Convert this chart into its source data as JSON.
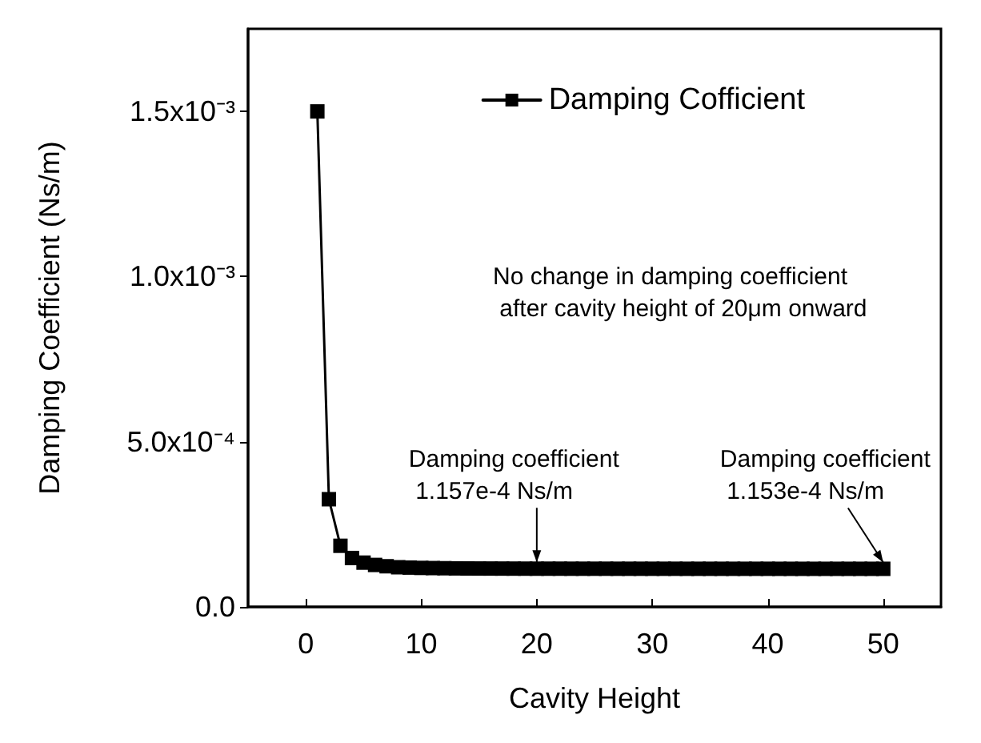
{
  "chart_data": {
    "type": "line",
    "xlabel": "Cavity Height",
    "ylabel": "Damping Coefficient (Ns/m)",
    "x": [
      1,
      2,
      3,
      4,
      5,
      6,
      7,
      8,
      9,
      10,
      11,
      12,
      13,
      14,
      15,
      16,
      17,
      18,
      19,
      20,
      21,
      22,
      23,
      24,
      25,
      26,
      27,
      28,
      29,
      30,
      31,
      32,
      33,
      34,
      35,
      36,
      37,
      38,
      39,
      40,
      41,
      42,
      43,
      44,
      45,
      46,
      47,
      48,
      49,
      50
    ],
    "series": [
      {
        "name": "Damping Cofficient",
        "color": "#000000",
        "values": [
          0.0015,
          0.000326,
          0.000185,
          0.000148,
          0.000134,
          0.000127,
          0.000123,
          0.00012,
          0.000119,
          0.000118,
          0.0001175,
          0.000117,
          0.0001166,
          0.0001164,
          0.0001162,
          0.0001161,
          0.000116,
          0.0001159,
          0.0001158,
          0.0001157,
          0.0001157,
          0.0001157,
          0.0001156,
          0.0001156,
          0.0001156,
          0.0001156,
          0.0001155,
          0.0001155,
          0.0001155,
          0.0001155,
          0.0001155,
          0.0001155,
          0.0001154,
          0.0001154,
          0.0001154,
          0.0001154,
          0.0001154,
          0.0001154,
          0.0001154,
          0.0001154,
          0.0001153,
          0.0001153,
          0.0001153,
          0.0001153,
          0.0001153,
          0.0001153,
          0.0001153,
          0.0001153,
          0.0001153,
          0.0001153
        ]
      }
    ],
    "xlim": [
      -5,
      55
    ],
    "xticks": [
      0,
      10,
      20,
      30,
      40,
      50
    ],
    "ylim": [
      0,
      0.00175
    ],
    "yticks": [
      {
        "value": 0,
        "label": "0.0"
      },
      {
        "value": 0.0005,
        "label": "5.0x10⁻⁴"
      },
      {
        "value": 0.001,
        "label": "1.0x10⁻³"
      },
      {
        "value": 0.0015,
        "label": "1.5x10⁻³"
      }
    ],
    "annotations": [
      {
        "text": "Damping coefficient\n 1.157e-4 Ns/m",
        "x": 20,
        "y": 0.0001157
      },
      {
        "text": "Damping coefficient\n 1.153e-4 Ns/m",
        "x": 50,
        "y": 0.0001153
      },
      "No change in damping coefficient\n after cavity height of 20μm onward"
    ],
    "grid": false,
    "legend": "top right",
    "marker": "square",
    "line_style": "solid"
  }
}
